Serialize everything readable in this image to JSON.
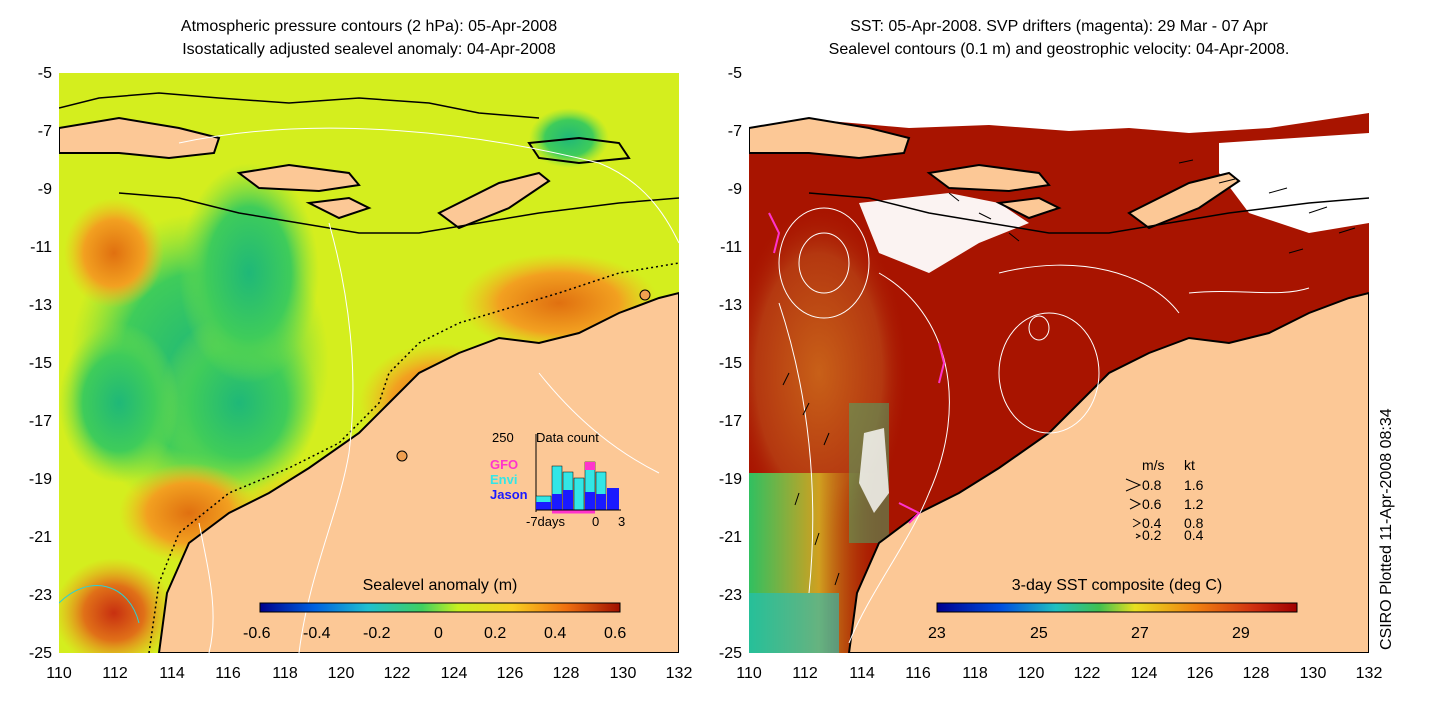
{
  "left_panel": {
    "title_line1": "Atmospheric pressure contours (2 hPa): 05-Apr-2008",
    "title_line2": "Isostatically adjusted sealevel anomaly: 04-Apr-2008",
    "colorbar_title": "Sealevel anomaly (m)",
    "colorbar_ticks": [
      "-0.6",
      "-0.4",
      "-0.2",
      "0",
      "0.2",
      "0.4",
      "0.6"
    ],
    "inset": {
      "title": "Data count",
      "max_label": "250",
      "legend": [
        {
          "label": "GFO",
          "color": "#ff33cc"
        },
        {
          "label": "Envi",
          "color": "#33e6e6"
        },
        {
          "label": "Jason",
          "color": "#1a1aff"
        }
      ],
      "xlabels": [
        "-7days",
        "0",
        "3"
      ]
    }
  },
  "right_panel": {
    "title_line1": "SST: 05-Apr-2008. SVP drifters (magenta): 29 Mar - 07 Apr",
    "title_line2": "Sealevel contours (0.1 m) and geostrophic velocity: 04-Apr-2008.",
    "colorbar_title": "3-day SST composite (deg C)",
    "colorbar_ticks": [
      "23",
      "25",
      "27",
      "29"
    ],
    "speed_legend": {
      "header_ms": "m/s",
      "header_kt": "kt",
      "rows": [
        {
          "ms": "0.8",
          "kt": "1.6"
        },
        {
          "ms": "0.6",
          "kt": "1.2"
        },
        {
          "ms": "0.4",
          "kt": "0.8"
        },
        {
          "ms": "0.2",
          "kt": "0.4"
        }
      ]
    }
  },
  "axes": {
    "y_ticks": [
      "-5",
      "-7",
      "-9",
      "-11",
      "-13",
      "-15",
      "-17",
      "-19",
      "-21",
      "-23",
      "-25"
    ],
    "x_ticks": [
      "110",
      "112",
      "114",
      "116",
      "118",
      "120",
      "122",
      "124",
      "126",
      "128",
      "130",
      "132"
    ]
  },
  "side_label": "CSIRO Plotted 11-Apr-2008 08:34",
  "colors": {
    "land": "#fcc896",
    "sst_warm": "#a81400",
    "sla_green": "#4fd060",
    "sla_yellow": "#d8f020"
  }
}
